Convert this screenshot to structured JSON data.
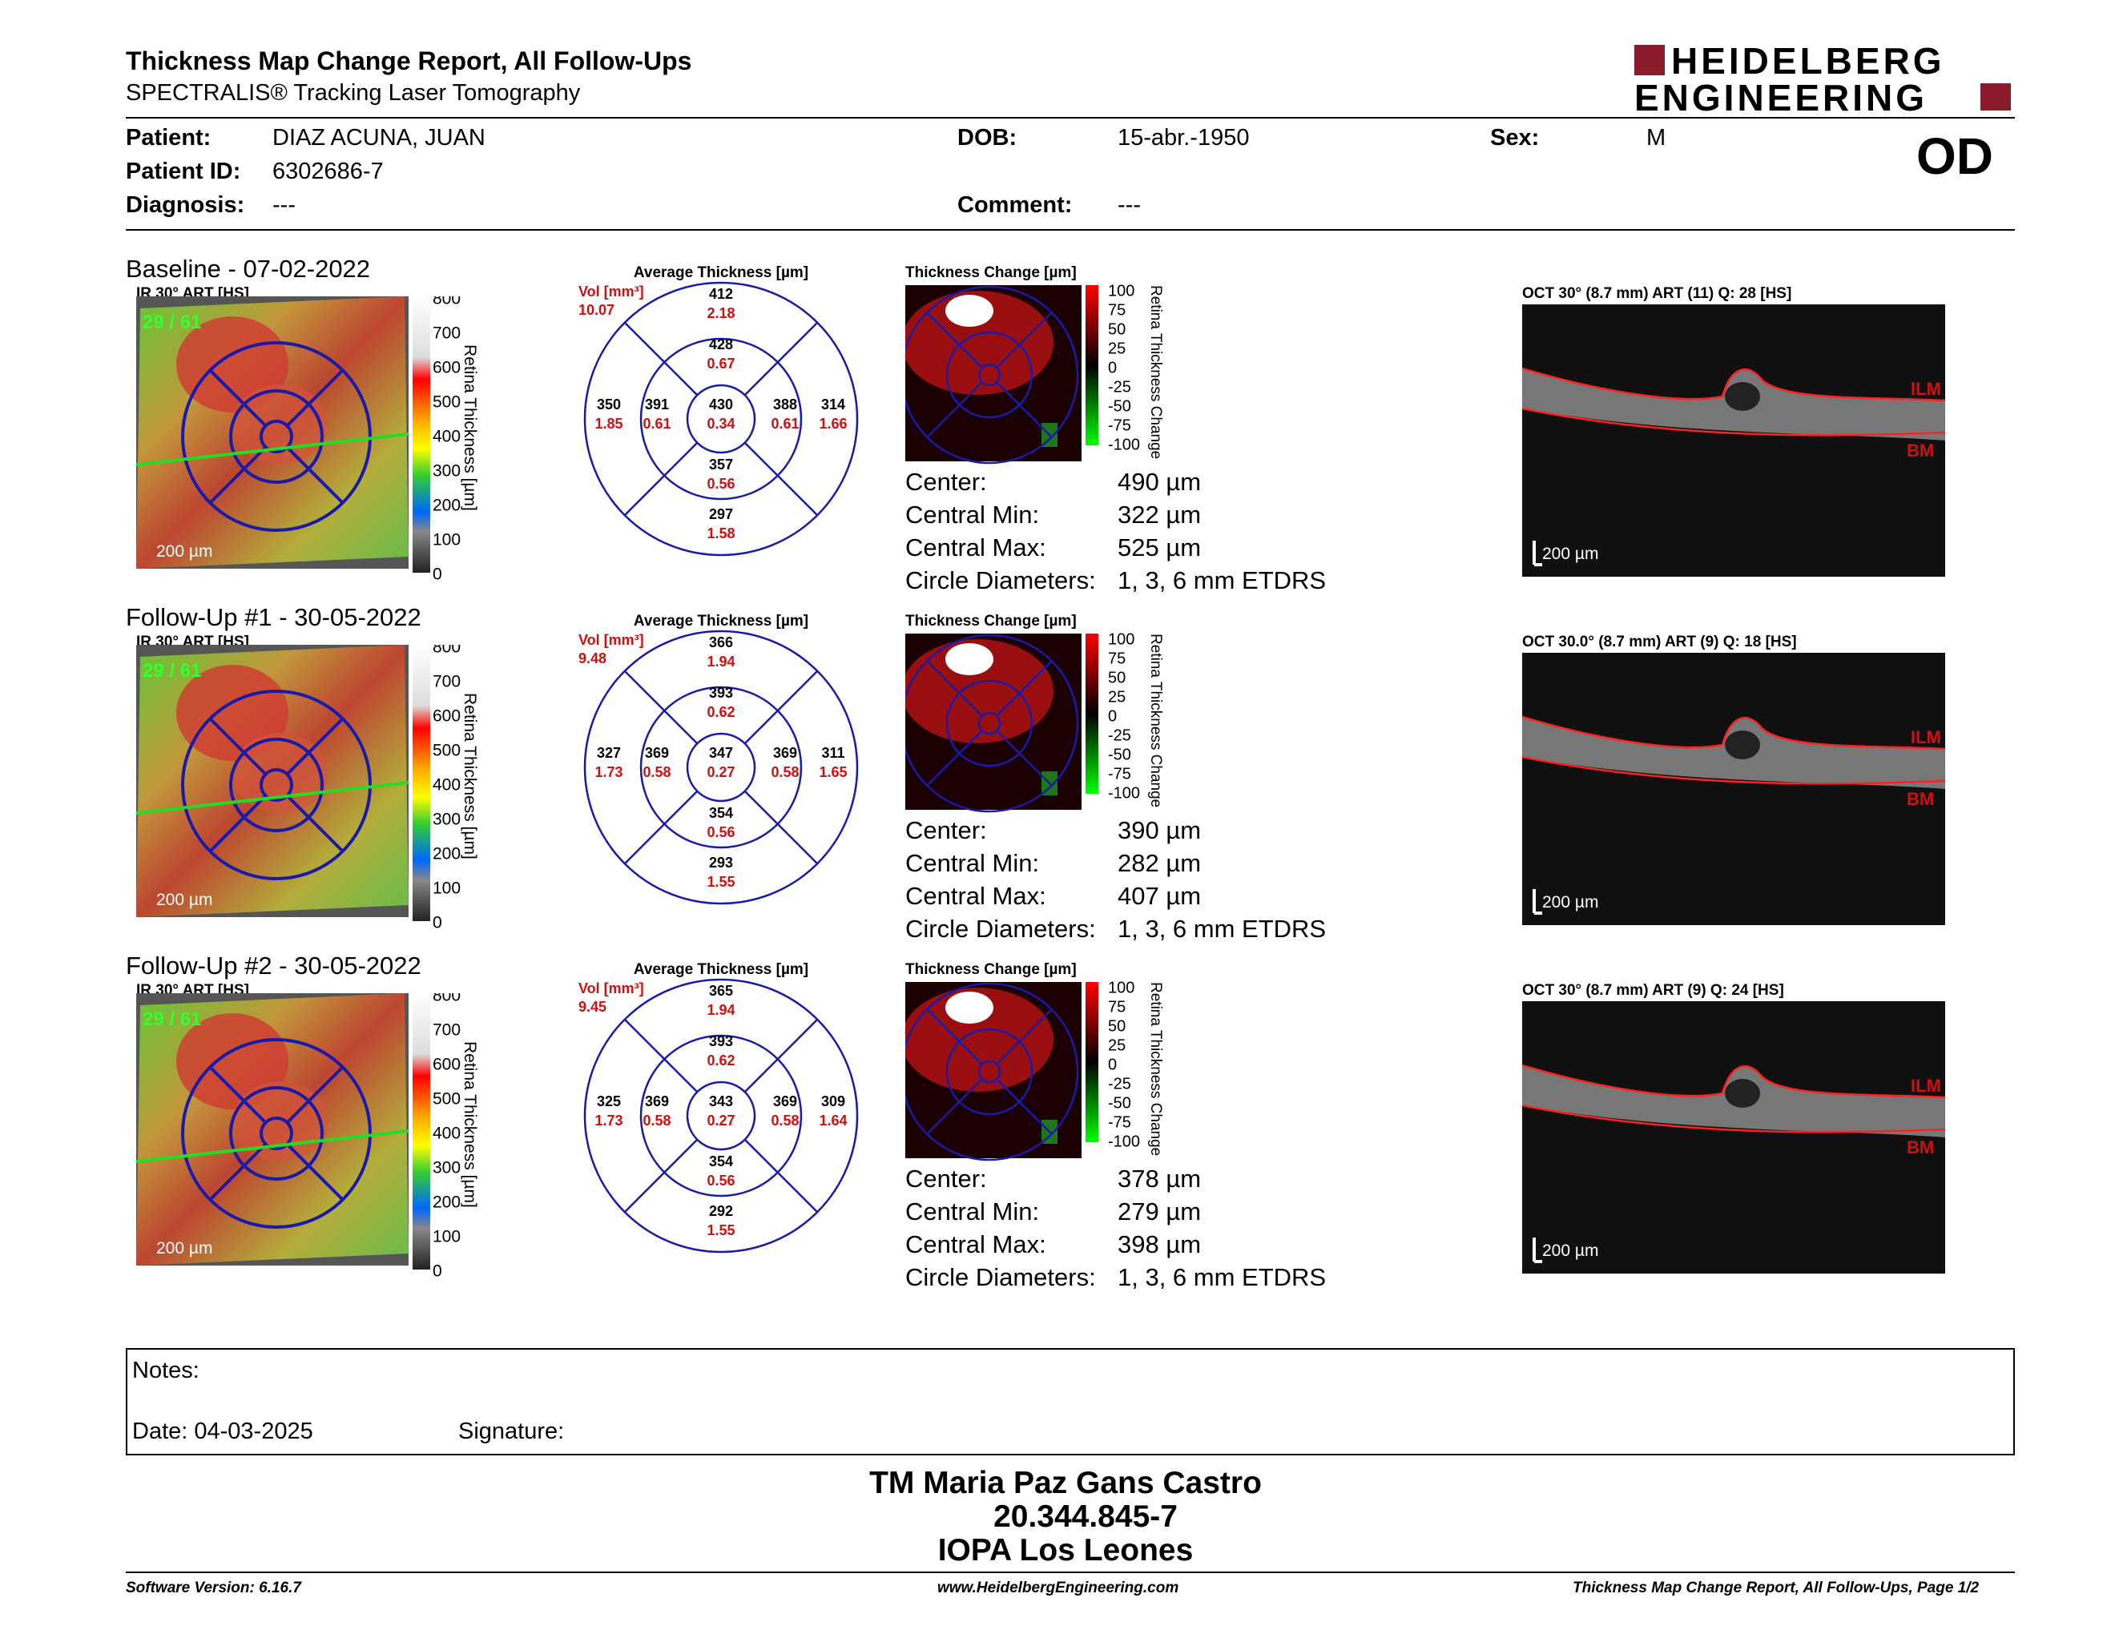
{
  "header": {
    "title": "Thickness Map Change Report, All Follow-Ups",
    "subtitle": "SPECTRALIS® Tracking Laser Tomography",
    "logo_line1": "HEIDELBERG",
    "logo_line2": "ENGINEERING",
    "eye": "OD"
  },
  "patient": {
    "patient_label": "Patient:",
    "patient_value": "DIAZ ACUNA, JUAN",
    "id_label": "Patient ID:",
    "id_value": "6302686-7",
    "diagnosis_label": "Diagnosis:",
    "diagnosis_value": "---",
    "dob_label": "DOB:",
    "dob_value": "15-abr.-1950",
    "comment_label": "Comment:",
    "comment_value": "---",
    "sex_label": "Sex:",
    "sex_value": "M"
  },
  "common": {
    "avg_thickness_title": "Average Thickness [µm]",
    "change_title": "Thickness Change [µm]",
    "scale_label": "Retina Thickness [µm]",
    "change_scale_label": "Retina Thickness Change",
    "scale_ticks": [
      "800",
      "700",
      "600",
      "500",
      "400",
      "300",
      "200",
      "100",
      "0"
    ],
    "change_ticks": [
      "100",
      "75",
      "50",
      "25",
      "0",
      "-25",
      "-50",
      "-75",
      "-100"
    ],
    "vol_label": "Vol [mm³]",
    "scalebar": "200 µm",
    "ilm": "ILM",
    "bm": "BM",
    "center_label": "Center:",
    "cmin_label": "Central Min:",
    "cmax_label": "Central Max:",
    "circle_label": "Circle Diameters:",
    "circle_value": "1, 3, 6 mm ETDRS",
    "ir_quality": "29 / 61"
  },
  "sections": [
    {
      "title": "Baseline - 07-02-2022",
      "ir_label": "IR 30° ART [HS]",
      "oct_label": "OCT 30° (8.7 mm) ART (11) Q: 28 [HS]",
      "vol": "10.07",
      "sectors": {
        "outer_top": [
          "412",
          "2.18"
        ],
        "inner_top": [
          "428",
          "0.67"
        ],
        "outer_left": [
          "350",
          "1.85"
        ],
        "inner_left": [
          "391",
          "0.61"
        ],
        "center": [
          "430",
          "0.34"
        ],
        "inner_right": [
          "388",
          "0.61"
        ],
        "outer_right": [
          "314",
          "1.66"
        ],
        "inner_bottom": [
          "357",
          "0.56"
        ],
        "outer_bottom": [
          "297",
          "1.58"
        ]
      },
      "center": "490 µm",
      "cmin": "322 µm",
      "cmax": "525 µm"
    },
    {
      "title": "Follow-Up #1 - 30-05-2022",
      "ir_label": "IR 30° ART [HS]",
      "oct_label": "OCT 30.0° (8.7 mm) ART (9) Q: 18 [HS]",
      "vol": "9.48",
      "sectors": {
        "outer_top": [
          "366",
          "1.94"
        ],
        "inner_top": [
          "393",
          "0.62"
        ],
        "outer_left": [
          "327",
          "1.73"
        ],
        "inner_left": [
          "369",
          "0.58"
        ],
        "center": [
          "347",
          "0.27"
        ],
        "inner_right": [
          "369",
          "0.58"
        ],
        "outer_right": [
          "311",
          "1.65"
        ],
        "inner_bottom": [
          "354",
          "0.56"
        ],
        "outer_bottom": [
          "293",
          "1.55"
        ]
      },
      "center": "390 µm",
      "cmin": "282 µm",
      "cmax": "407 µm"
    },
    {
      "title": "Follow-Up #2 - 30-05-2022",
      "ir_label": "IR 30° ART [HS]",
      "oct_label": "OCT 30° (8.7 mm) ART (9) Q: 24 [HS]",
      "vol": "9.45",
      "sectors": {
        "outer_top": [
          "365",
          "1.94"
        ],
        "inner_top": [
          "393",
          "0.62"
        ],
        "outer_left": [
          "325",
          "1.73"
        ],
        "inner_left": [
          "369",
          "0.58"
        ],
        "center": [
          "343",
          "0.27"
        ],
        "inner_right": [
          "369",
          "0.58"
        ],
        "outer_right": [
          "309",
          "1.64"
        ],
        "inner_bottom": [
          "354",
          "0.56"
        ],
        "outer_bottom": [
          "292",
          "1.55"
        ]
      },
      "center": "378 µm",
      "cmin": "279 µm",
      "cmax": "398 µm"
    }
  ],
  "notes": {
    "notes_label": "Notes:",
    "date_label": "Date: 04-03-2025",
    "signature_label": "Signature:"
  },
  "signature": {
    "line1": "TM Maria Paz Gans Castro",
    "line2": "20.344.845-7",
    "line3": "IOPA Los Leones"
  },
  "footer": {
    "version": "Software Version: 6.16.7",
    "url": "www.HeidelbergEngineering.com",
    "page": "Thickness Map Change Report, All Follow-Ups, Page 1/2"
  },
  "colors": {
    "accent": "#8b1a2b",
    "sector_line": "#1a1aa8",
    "value_red": "#cc1111"
  }
}
